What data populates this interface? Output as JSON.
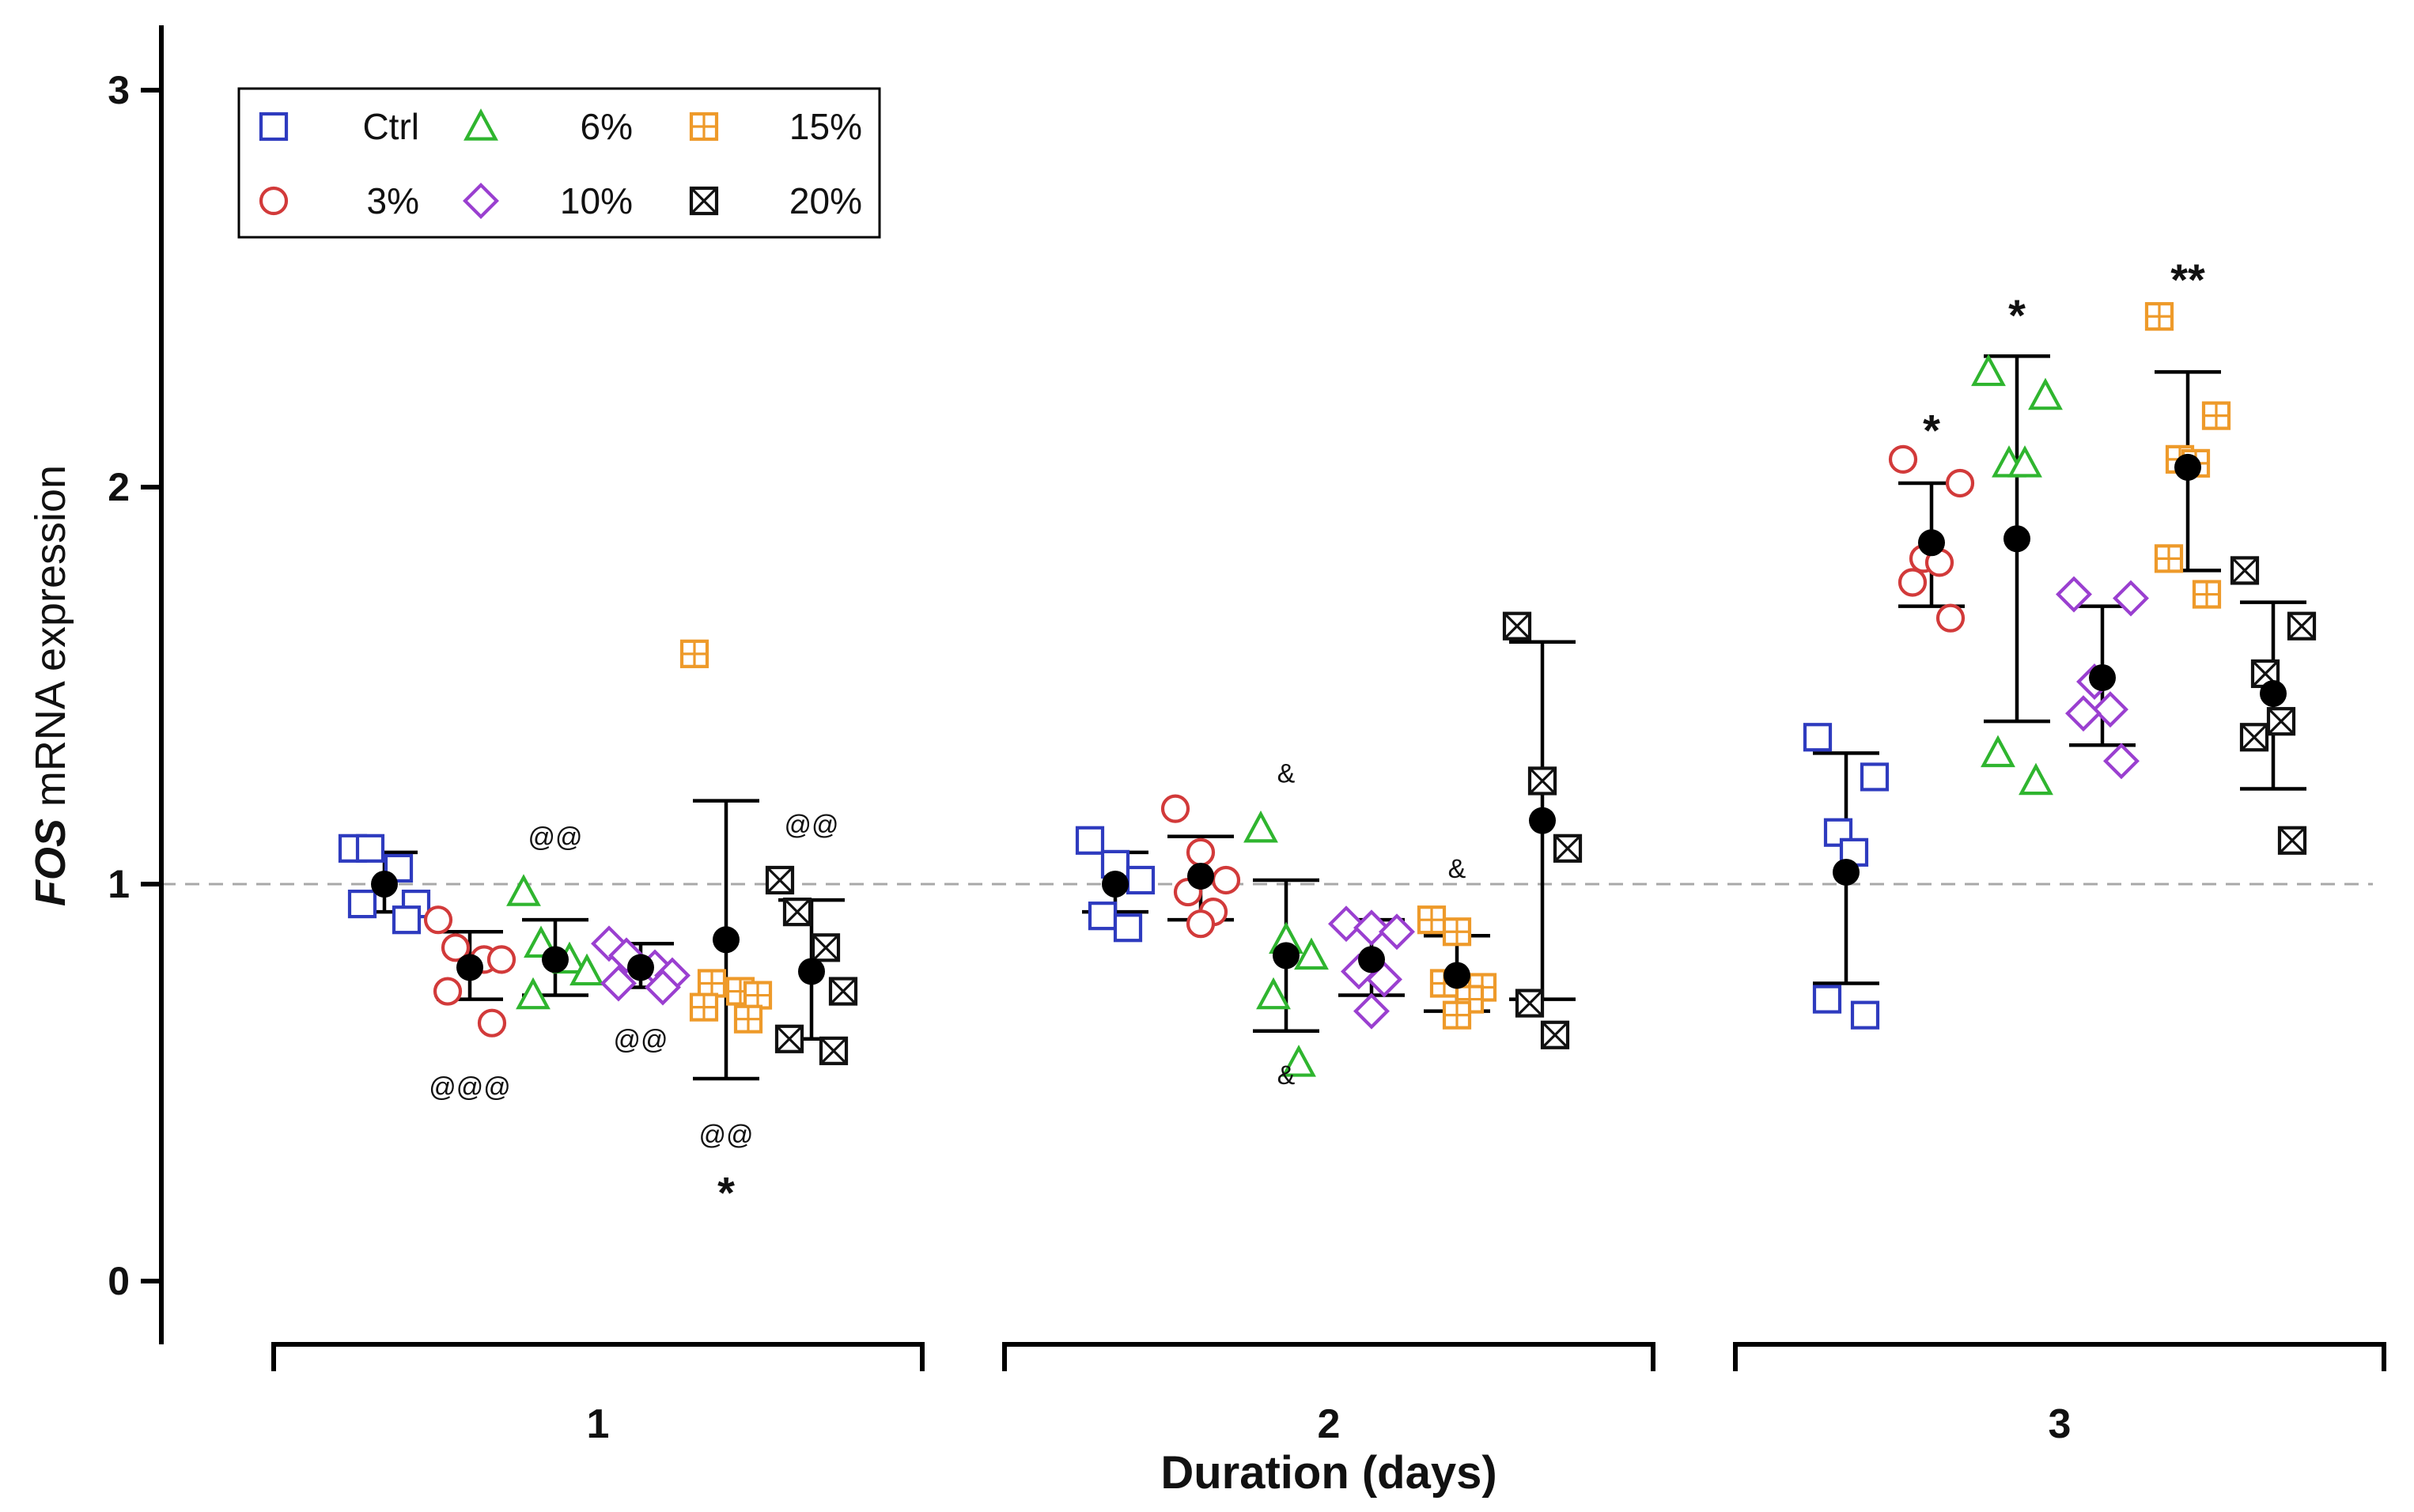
{
  "chart_data": {
    "type": "scatter",
    "title": "",
    "xlabel": "Duration (days)",
    "ylabel_italic": "FOS",
    "ylabel_rest": " mRNA expression",
    "ylim": [
      0,
      3.1
    ],
    "yticks": [
      0,
      1,
      2,
      3
    ],
    "ytick_labels": [
      "0",
      "1",
      "2",
      "3"
    ],
    "reference_line": 1,
    "groups": [
      "1",
      "2",
      "3"
    ],
    "legend": {
      "placement": "top-left",
      "columns": 3
    },
    "colors": {
      "ctrl": "#2e3bbf",
      "c3": "#d23a3a",
      "c6": "#2fb52f",
      "c10": "#9a3fd0",
      "c15": "#ee9a2a",
      "c20": "#111111",
      "mean": "#000000",
      "refline": "#a8a8a8"
    },
    "series": [
      {
        "key": "ctrl",
        "name": "Ctrl",
        "marker": "square-open",
        "legend_order": 0,
        "groups": [
          {
            "points": [
              1.09,
              1.09,
              1.04,
              0.95,
              0.95,
              0.91
            ],
            "mean": 1.0,
            "lower": 0.93,
            "upper": 1.08
          },
          {
            "points": [
              1.11,
              1.05,
              1.01,
              0.92,
              0.89
            ],
            "mean": 1.0,
            "lower": 0.93,
            "upper": 1.08
          },
          {
            "points": [
              1.37,
              1.27,
              1.13,
              1.08,
              0.71,
              0.67
            ],
            "mean": 1.03,
            "lower": 0.75,
            "upper": 1.33
          }
        ]
      },
      {
        "key": "c3",
        "name": "3%",
        "marker": "circle-open",
        "legend_order": 3,
        "groups": [
          {
            "points": [
              0.91,
              0.84,
              0.81,
              0.81,
              0.73,
              0.65
            ],
            "mean": 0.79,
            "lower": 0.71,
            "upper": 0.88
          },
          {
            "points": [
              1.19,
              1.08,
              1.01,
              0.98,
              0.93,
              0.9
            ],
            "mean": 1.02,
            "lower": 0.91,
            "upper": 1.12
          },
          {
            "points": [
              2.07,
              2.01,
              1.82,
              1.81,
              1.76,
              1.67
            ],
            "mean": 1.86,
            "lower": 1.7,
            "upper": 2.01
          }
        ]
      },
      {
        "key": "c6",
        "name": "6%",
        "marker": "triangle-open",
        "legend_order": 1,
        "groups": [
          {
            "points": [
              0.98,
              0.85,
              0.81,
              0.78,
              0.72
            ],
            "mean": 0.81,
            "lower": 0.72,
            "upper": 0.91
          },
          {
            "points": [
              1.14,
              0.86,
              0.82,
              0.72,
              0.55
            ],
            "mean": 0.82,
            "lower": 0.63,
            "upper": 1.01
          },
          {
            "points": [
              2.29,
              2.23,
              2.06,
              2.06,
              1.33,
              1.26
            ],
            "mean": 1.87,
            "lower": 1.41,
            "upper": 2.33
          }
        ]
      },
      {
        "key": "c10",
        "name": "10%",
        "marker": "diamond-open",
        "legend_order": 4,
        "groups": [
          {
            "points": [
              0.85,
              0.82,
              0.79,
              0.77,
              0.75,
              0.74
            ],
            "mean": 0.79,
            "lower": 0.74,
            "upper": 0.85
          },
          {
            "points": [
              0.9,
              0.89,
              0.88,
              0.78,
              0.76,
              0.68
            ],
            "mean": 0.81,
            "lower": 0.72,
            "upper": 0.91
          },
          {
            "points": [
              1.73,
              1.72,
              1.51,
              1.44,
              1.43,
              1.31
            ],
            "mean": 1.52,
            "lower": 1.35,
            "upper": 1.7
          }
        ]
      },
      {
        "key": "c15",
        "name": "15%",
        "marker": "square-grid",
        "legend_order": 2,
        "groups": [
          {
            "points": [
              1.58,
              0.75,
              0.73,
              0.72,
              0.69,
              0.66
            ],
            "mean": 0.86,
            "lower": 0.51,
            "upper": 1.21
          },
          {
            "points": [
              0.91,
              0.88,
              0.74,
              0.75,
              0.71,
              0.67
            ],
            "mean": 0.77,
            "lower": 0.68,
            "upper": 0.87
          },
          {
            "points": [
              2.43,
              2.18,
              2.07,
              2.06,
              1.82,
              1.73
            ],
            "mean": 2.05,
            "lower": 1.79,
            "upper": 2.29
          }
        ]
      },
      {
        "key": "c20",
        "name": "20%",
        "marker": "square-x",
        "legend_order": 5,
        "groups": [
          {
            "points": [
              1.01,
              0.93,
              0.84,
              0.73,
              0.61,
              0.58
            ],
            "mean": 0.78,
            "lower": 0.61,
            "upper": 0.96
          },
          {
            "points": [
              1.65,
              1.26,
              1.09,
              0.7,
              0.62
            ],
            "mean": 1.16,
            "lower": 0.71,
            "upper": 1.61
          },
          {
            "points": [
              1.79,
              1.65,
              1.53,
              1.41,
              1.37,
              1.11
            ],
            "mean": 1.48,
            "lower": 1.24,
            "upper": 1.71
          }
        ]
      }
    ],
    "annotations": [
      {
        "text": "@@@",
        "group": 0,
        "series": "c3",
        "value": 0.49,
        "size": "small"
      },
      {
        "text": "@@",
        "group": 0,
        "series": "c6",
        "value": 1.12,
        "size": "small"
      },
      {
        "text": "@@",
        "group": 0,
        "series": "c10",
        "value": 0.61,
        "size": "small"
      },
      {
        "text": "@@",
        "group": 0,
        "series": "c15",
        "value": 0.37,
        "size": "small"
      },
      {
        "text": "*",
        "group": 0,
        "series": "c15",
        "value": 0.26,
        "size": "large"
      },
      {
        "text": "@@",
        "group": 0,
        "series": "c20",
        "value": 1.15,
        "size": "small"
      },
      {
        "text": "&",
        "group": 1,
        "series": "c6",
        "value": 1.28,
        "size": "small"
      },
      {
        "text": "&",
        "group": 1,
        "series": "c6",
        "value": 0.52,
        "size": "small"
      },
      {
        "text": "&",
        "group": 1,
        "series": "c15",
        "value": 1.04,
        "size": "small"
      },
      {
        "text": "*",
        "group": 2,
        "series": "c3",
        "value": 2.18,
        "size": "large"
      },
      {
        "text": "*",
        "group": 2,
        "series": "c6",
        "value": 2.47,
        "size": "large"
      },
      {
        "text": "**",
        "group": 2,
        "series": "c15",
        "value": 2.56,
        "size": "large"
      }
    ]
  }
}
